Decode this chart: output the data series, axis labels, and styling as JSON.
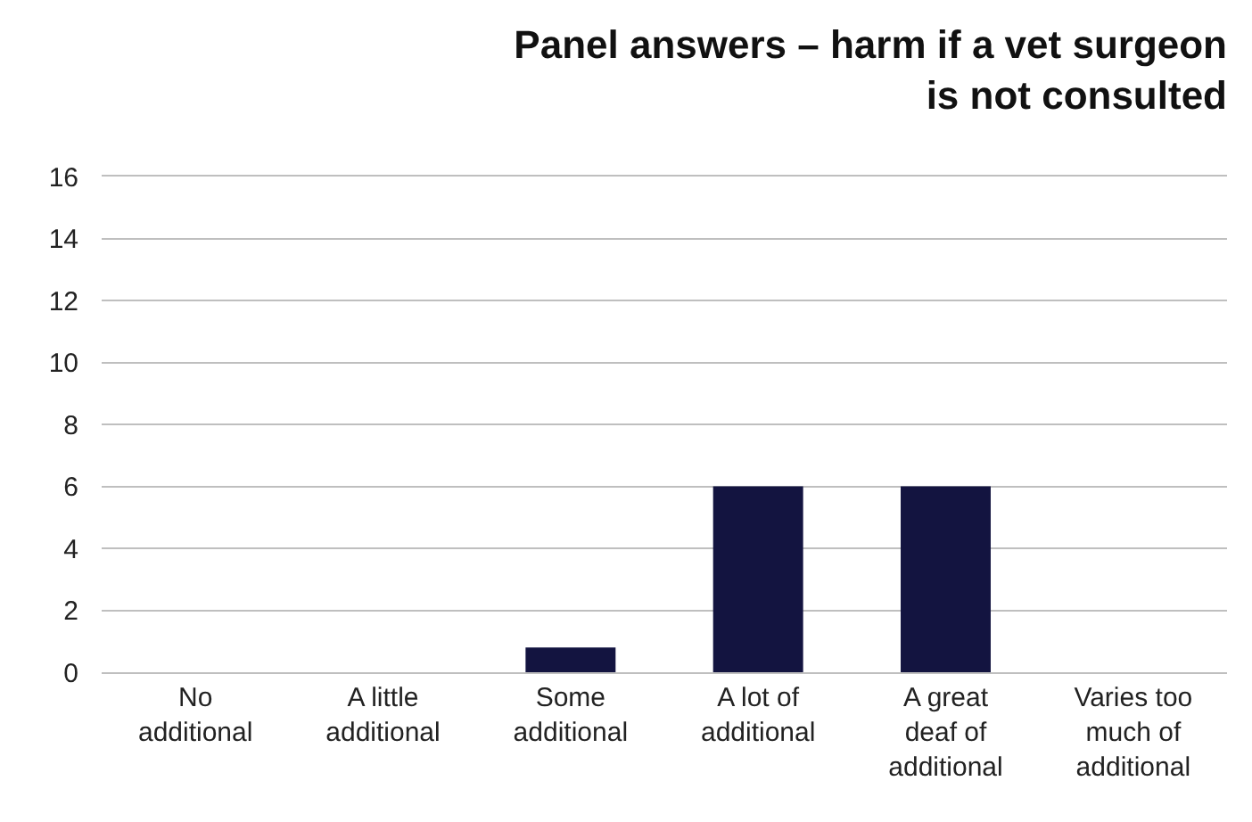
{
  "chart_data": {
    "type": "bar",
    "title": "Panel answers – harm if a vet surgeon is not consulted",
    "categories": [
      "No additional",
      "A little additional",
      "Some additional",
      "A lot of additional",
      "A great deaf of additional",
      "Varies too much of additional"
    ],
    "values": [
      0,
      0,
      0.8,
      6,
      6,
      0
    ],
    "color": "#131440",
    "ylim": [
      0,
      16
    ],
    "yticks": [
      0,
      2,
      4,
      6,
      8,
      10,
      12,
      14,
      16
    ],
    "grid": "y"
  }
}
